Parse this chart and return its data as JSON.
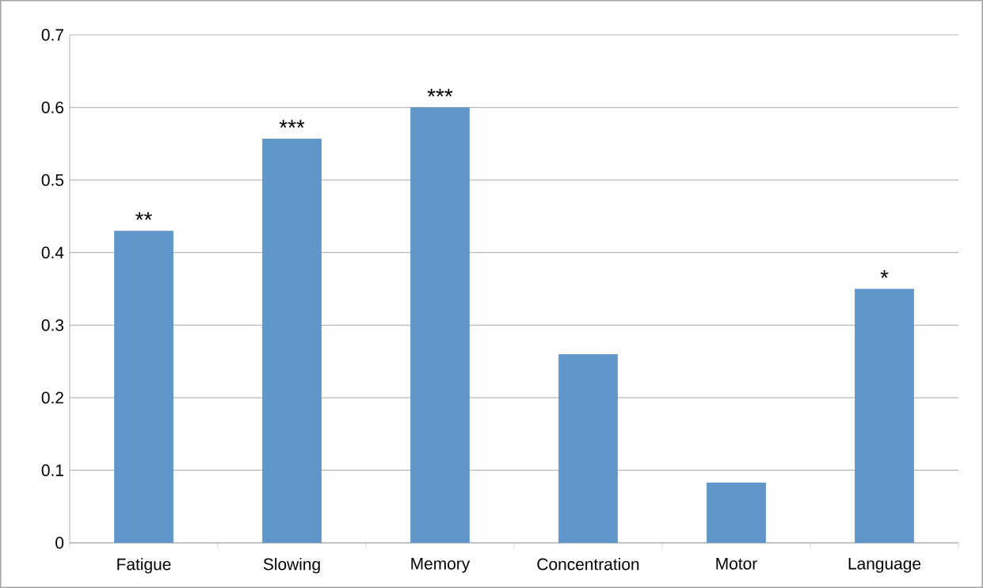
{
  "chart_data": {
    "type": "bar",
    "categories": [
      "Fatigue",
      "Slowing",
      "Memory",
      "Concentration",
      "Motor",
      "Language"
    ],
    "values": [
      0.43,
      0.557,
      0.6,
      0.26,
      0.083,
      0.35
    ],
    "color": "#6096c9",
    "ylim": [
      0,
      0.7
    ],
    "yticks": [
      0,
      0.1,
      0.2,
      0.3,
      0.4,
      0.5,
      0.6,
      0.7
    ],
    "grid": "y",
    "annotations": [
      {
        "text": "**",
        "x": "Fatigue",
        "y": 0.43
      },
      {
        "text": "***",
        "x": "Slowing",
        "y": 0.557
      },
      {
        "text": "***",
        "x": "Memory",
        "y": 0.6
      },
      {
        "text": "*",
        "x": "Language",
        "y": 0.35
      }
    ]
  }
}
